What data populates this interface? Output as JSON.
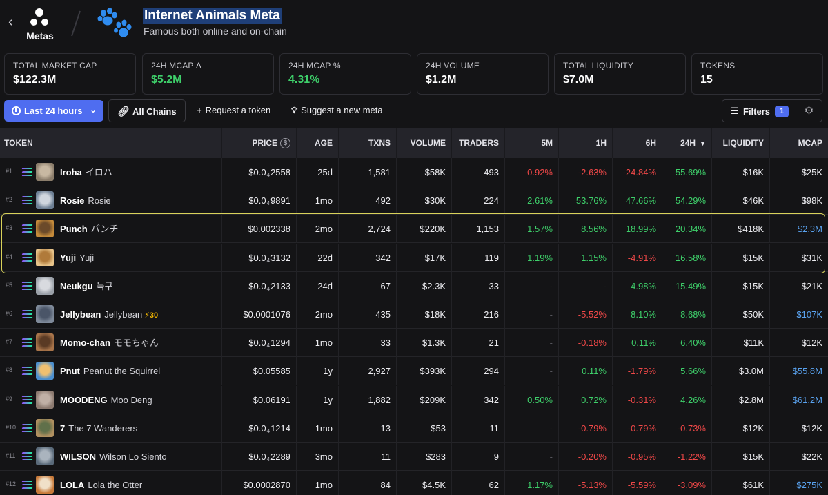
{
  "header": {
    "back_icon": "chevron-left-icon",
    "metas_label": "Metas",
    "meta_icon": "paw-icon",
    "title": "Internet Animals Meta",
    "subtitle": "Famous both online and on-chain"
  },
  "stats": [
    {
      "label": "TOTAL MARKET CAP",
      "value": "$122.3M"
    },
    {
      "label": "24H MCAP Δ",
      "value": "$5.2M"
    },
    {
      "label": "24H MCAP %",
      "value": "4.31%"
    },
    {
      "label": "24H VOLUME",
      "value": "$1.2M"
    },
    {
      "label": "TOTAL LIQUIDITY",
      "value": "$7.0M"
    },
    {
      "label": "TOKENS",
      "value": "15"
    }
  ],
  "toolbar": {
    "time_label": "Last 24 hours",
    "chains_label": "All Chains",
    "request_label": "Request a token",
    "suggest_label": "Suggest a new meta",
    "filters_label": "Filters",
    "filters_count": "1"
  },
  "columns": {
    "token": "TOKEN",
    "price": "PRICE",
    "age": "AGE",
    "txns": "TXNS",
    "volume": "VOLUME",
    "traders": "TRADERS",
    "m5": "5M",
    "h1": "1H",
    "h6": "6H",
    "h24": "24H",
    "liquidity": "LIQUIDITY",
    "mcap": "MCAP"
  },
  "colors": {
    "accent": "#4f6df0",
    "positive": "#3ecf6a",
    "negative": "#f04848",
    "highlight": "#d9d25a"
  },
  "rows": [
    {
      "rank": "#1",
      "symbol": "Iroha",
      "name": "イロハ",
      "price": [
        "$0.0",
        "4",
        "2558"
      ],
      "age": "25d",
      "txns": "1,581",
      "volume": "$58K",
      "traders": "493",
      "m5": "-0.92%",
      "h1": "-2.63%",
      "h6": "-24.84%",
      "h24": "55.69%",
      "liquidity": "$16K",
      "mcap": "$25K"
    },
    {
      "rank": "#2",
      "symbol": "Rosie",
      "name": "Rosie",
      "price": [
        "$0.0",
        "4",
        "9891"
      ],
      "age": "1mo",
      "txns": "492",
      "volume": "$30K",
      "traders": "224",
      "m5": "2.61%",
      "h1": "53.76%",
      "h6": "47.66%",
      "h24": "54.29%",
      "liquidity": "$46K",
      "mcap": "$98K"
    },
    {
      "rank": "#3",
      "symbol": "Punch",
      "name": "パンチ",
      "price": [
        "$0.002338",
        "",
        ""
      ],
      "age": "2mo",
      "txns": "2,724",
      "volume": "$220K",
      "traders": "1,153",
      "m5": "1.57%",
      "h1": "8.56%",
      "h6": "18.99%",
      "h24": "20.34%",
      "liquidity": "$418K",
      "mcap": "$2.3M"
    },
    {
      "rank": "#4",
      "symbol": "Yuji",
      "name": "Yuji",
      "price": [
        "$0.0",
        "4",
        "3132"
      ],
      "age": "22d",
      "txns": "342",
      "volume": "$17K",
      "traders": "119",
      "m5": "1.19%",
      "h1": "1.15%",
      "h6": "-4.91%",
      "h24": "16.58%",
      "liquidity": "$15K",
      "mcap": "$31K"
    },
    {
      "rank": "#5",
      "symbol": "Neukgu",
      "name": "늑구",
      "price": [
        "$0.0",
        "4",
        "2133"
      ],
      "age": "24d",
      "txns": "67",
      "volume": "$2.3K",
      "traders": "33",
      "m5": "-",
      "h1": "-",
      "h6": "4.98%",
      "h24": "15.49%",
      "liquidity": "$15K",
      "mcap": "$21K"
    },
    {
      "rank": "#6",
      "symbol": "Jellybean",
      "name": "Jellybean",
      "boost": "⚡30",
      "price": [
        "$0.0001076",
        "",
        ""
      ],
      "age": "2mo",
      "txns": "435",
      "volume": "$18K",
      "traders": "216",
      "m5": "-",
      "h1": "-5.52%",
      "h6": "8.10%",
      "h24": "8.68%",
      "liquidity": "$50K",
      "mcap": "$107K"
    },
    {
      "rank": "#7",
      "symbol": "Momo-chan",
      "name": "モモちゃん",
      "price": [
        "$0.0",
        "4",
        "1294"
      ],
      "age": "1mo",
      "txns": "33",
      "volume": "$1.3K",
      "traders": "21",
      "m5": "-",
      "h1": "-0.18%",
      "h6": "0.11%",
      "h24": "6.40%",
      "liquidity": "$11K",
      "mcap": "$12K"
    },
    {
      "rank": "#8",
      "symbol": "Pnut",
      "name": "Peanut the Squirrel",
      "price": [
        "$0.05585",
        "",
        ""
      ],
      "age": "1y",
      "txns": "2,927",
      "volume": "$393K",
      "traders": "294",
      "m5": "-",
      "h1": "0.11%",
      "h6": "-1.79%",
      "h24": "5.66%",
      "liquidity": "$3.0M",
      "mcap": "$55.8M"
    },
    {
      "rank": "#9",
      "symbol": "MOODENG",
      "name": "Moo Deng",
      "price": [
        "$0.06191",
        "",
        ""
      ],
      "age": "1y",
      "txns": "1,882",
      "volume": "$209K",
      "traders": "342",
      "m5": "0.50%",
      "h1": "0.72%",
      "h6": "-0.31%",
      "h24": "4.26%",
      "liquidity": "$2.8M",
      "mcap": "$61.2M"
    },
    {
      "rank": "#10",
      "symbol": "7",
      "name": "The 7 Wanderers",
      "price": [
        "$0.0",
        "4",
        "1214"
      ],
      "age": "1mo",
      "txns": "13",
      "volume": "$53",
      "traders": "11",
      "m5": "-",
      "h1": "-0.79%",
      "h6": "-0.79%",
      "h24": "-0.73%",
      "liquidity": "$12K",
      "mcap": "$12K"
    },
    {
      "rank": "#11",
      "symbol": "WILSON",
      "name": "Wilson Lo Siento",
      "price": [
        "$0.0",
        "4",
        "2289"
      ],
      "age": "3mo",
      "txns": "11",
      "volume": "$283",
      "traders": "9",
      "m5": "-",
      "h1": "-0.20%",
      "h6": "-0.95%",
      "h24": "-1.22%",
      "liquidity": "$15K",
      "mcap": "$22K"
    },
    {
      "rank": "#12",
      "symbol": "LOLA",
      "name": "Lola the Otter",
      "price": [
        "$0.0002870",
        "",
        ""
      ],
      "age": "1mo",
      "txns": "84",
      "volume": "$4.5K",
      "traders": "62",
      "m5": "1.17%",
      "h1": "-5.13%",
      "h6": "-5.59%",
      "h24": "-3.09%",
      "liquidity": "$61K",
      "mcap": "$275K"
    }
  ]
}
